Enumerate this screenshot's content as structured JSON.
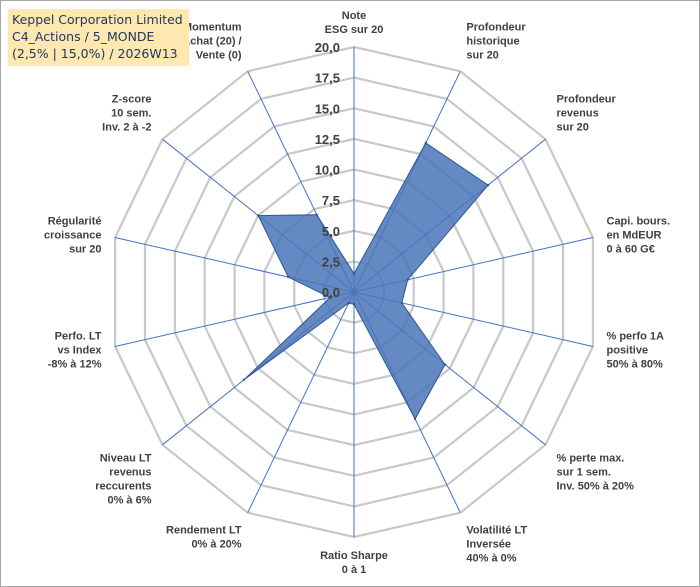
{
  "title_box": {
    "line1": "Keppel Corporation Limited",
    "line2": "C4_Actions / 5_MONDE",
    "line3": "(2,5% | 15,0%) / 2026W13"
  },
  "colors": {
    "fill": "#4a76b8",
    "stroke": "#2f5597",
    "grid": "#c8c8c8",
    "spoke": "#4472c4",
    "title_bg": "#fde8b0"
  },
  "chart_data": {
    "type": "radar",
    "rmin": 0,
    "rmax": 20,
    "ticks": [
      "0,0",
      "2,5",
      "5,0",
      "7,5",
      "10,0",
      "12,5",
      "15,0",
      "17,5",
      "20,0"
    ],
    "tick_values": [
      0,
      2.5,
      5,
      7.5,
      10,
      12.5,
      15,
      17.5,
      20
    ],
    "axes": [
      {
        "label": [
          "Note",
          "ESG sur 20"
        ],
        "value": 1.5
      },
      {
        "label": [
          "Profondeur",
          "historique",
          "sur 20"
        ],
        "value": 13.5
      },
      {
        "label": [
          "Profondeur",
          "revenus",
          "sur 20"
        ],
        "value": 14.0
      },
      {
        "label": [
          "Capi. bours.",
          "en MdEUR",
          "0 à 60 G€"
        ],
        "value": 4.5
      },
      {
        "label": [
          "% perfo 1A",
          "positive",
          "50% à 80%"
        ],
        "value": 4.0
      },
      {
        "label": [
          "% perte max.",
          "sur 1 sem.",
          "Inv. 50% à 20%"
        ],
        "value": 9.5
      },
      {
        "label": [
          "Volatilité LT",
          "Inversée",
          "40% à 0%"
        ],
        "value": 11.5
      },
      {
        "label": [
          "Ratio Sharpe",
          "0 à 1"
        ],
        "value": 1.0
      },
      {
        "label": [
          "Rendement LT",
          "0% à 20%"
        ],
        "value": 1.0
      },
      {
        "label": [
          "Niveau LT",
          "revenus",
          "reccurents",
          "0% à 6%"
        ],
        "value": 11.5
      },
      {
        "label": [
          "Perfo. LT",
          "vs Index",
          "-8% à 12%"
        ],
        "value": 2.0
      },
      {
        "label": [
          "Régularité",
          "croissance",
          "sur 20"
        ],
        "value": 5.5
      },
      {
        "label": [
          "Z-score",
          "10 sem.",
          "Inv. 2 à -2"
        ],
        "value": 10.0
      },
      {
        "label": [
          "Momentum",
          "Achat (20) /",
          "Vente (0)"
        ],
        "value": 7.0
      }
    ]
  }
}
